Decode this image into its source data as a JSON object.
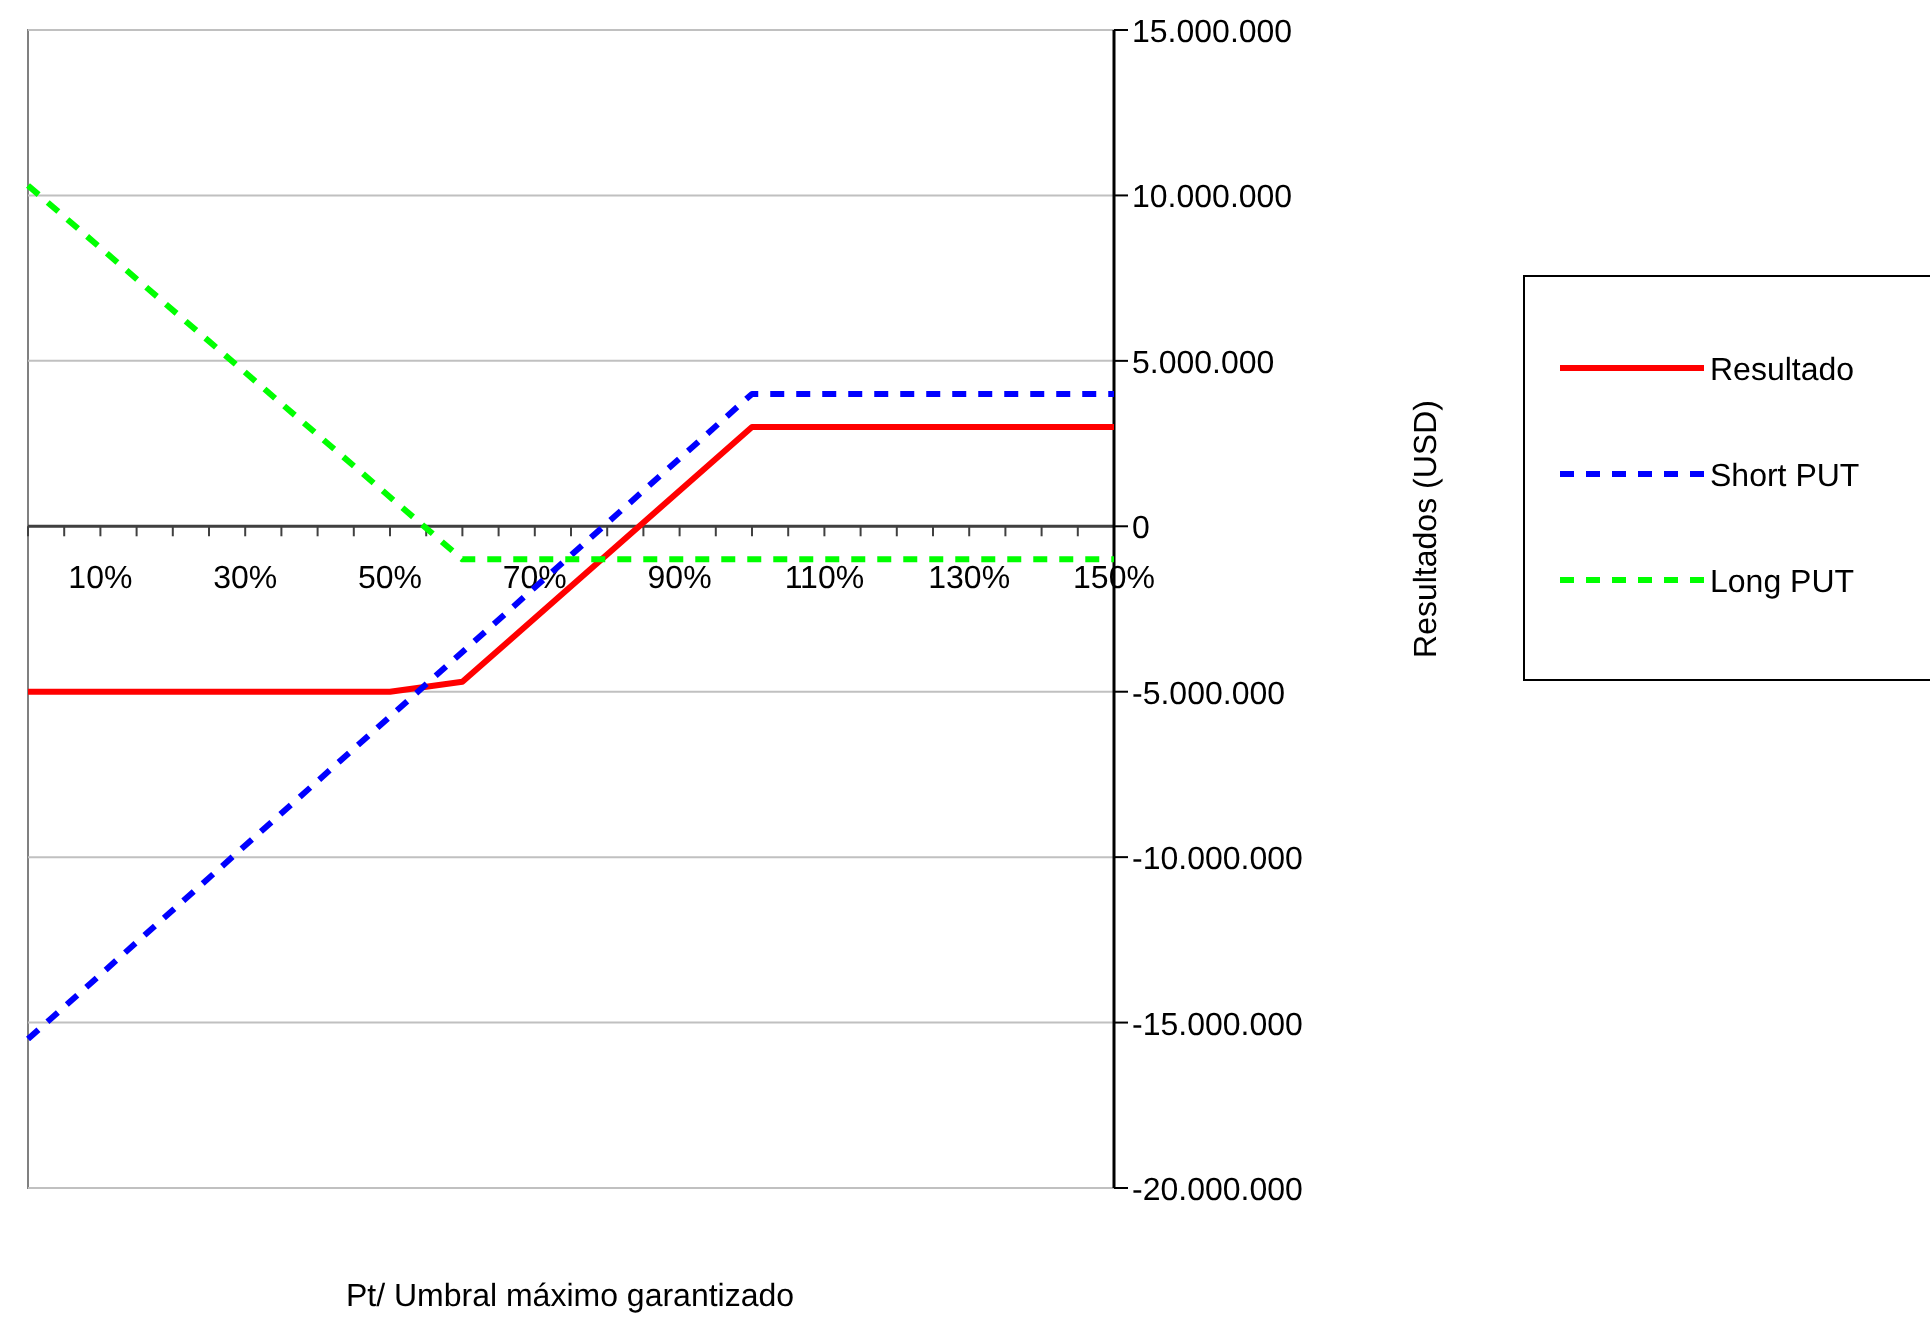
{
  "chart_data": {
    "type": "line",
    "xlabel": "Pt/ Umbral máximo garantizado",
    "ylabel": "Resultados (USD)",
    "xlim": [
      0,
      150
    ],
    "xticks": [
      {
        "value": 0,
        "label": null
      },
      {
        "value": 5,
        "label": null
      },
      {
        "value": 10,
        "label": "10%"
      },
      {
        "value": 15,
        "label": null
      },
      {
        "value": 20,
        "label": null
      },
      {
        "value": 25,
        "label": null
      },
      {
        "value": 30,
        "label": "30%"
      },
      {
        "value": 35,
        "label": null
      },
      {
        "value": 40,
        "label": null
      },
      {
        "value": 45,
        "label": null
      },
      {
        "value": 50,
        "label": "50%"
      },
      {
        "value": 55,
        "label": null
      },
      {
        "value": 60,
        "label": null
      },
      {
        "value": 65,
        "label": null
      },
      {
        "value": 70,
        "label": "70%"
      },
      {
        "value": 75,
        "label": null
      },
      {
        "value": 80,
        "label": null
      },
      {
        "value": 85,
        "label": null
      },
      {
        "value": 90,
        "label": "90%"
      },
      {
        "value": 95,
        "label": null
      },
      {
        "value": 100,
        "label": null
      },
      {
        "value": 105,
        "label": null
      },
      {
        "value": 110,
        "label": "110%"
      },
      {
        "value": 115,
        "label": null
      },
      {
        "value": 120,
        "label": null
      },
      {
        "value": 125,
        "label": null
      },
      {
        "value": 130,
        "label": "130%"
      },
      {
        "value": 135,
        "label": null
      },
      {
        "value": 140,
        "label": null
      },
      {
        "value": 145,
        "label": null
      },
      {
        "value": 150,
        "label": "150%"
      }
    ],
    "ylim": [
      -20000000,
      15000000
    ],
    "yticks": [
      {
        "value": 15000000,
        "label": "15.000.000"
      },
      {
        "value": 10000000,
        "label": "10.000.000"
      },
      {
        "value": 5000000,
        "label": "5.000.000"
      },
      {
        "value": 0,
        "label": "0"
      },
      {
        "value": -5000000,
        "label": "-5.000.000"
      },
      {
        "value": -10000000,
        "label": "-10.000.000"
      },
      {
        "value": -15000000,
        "label": "-15.000.000"
      },
      {
        "value": -20000000,
        "label": "-20.000.000"
      }
    ],
    "grid": "y",
    "legend": "right",
    "marker": "none",
    "series": [
      {
        "name": "Resultado",
        "color": "#ff0000",
        "line_style": "solid",
        "x": [
          0,
          50,
          60,
          100,
          150
        ],
        "values": [
          -5000000,
          -5000000,
          -4700000,
          3000000,
          3000000
        ]
      },
      {
        "name": "Short PUT",
        "color": "#0000ff",
        "line_style": "dashed",
        "x": [
          0,
          100,
          150
        ],
        "values": [
          -15500000,
          4000000,
          4000000
        ]
      },
      {
        "name": "Long PUT",
        "color": "#00ff00",
        "line_style": "dashed",
        "x": [
          0,
          60,
          150
        ],
        "values": [
          10300000,
          -1000000,
          -1000000
        ]
      }
    ]
  }
}
